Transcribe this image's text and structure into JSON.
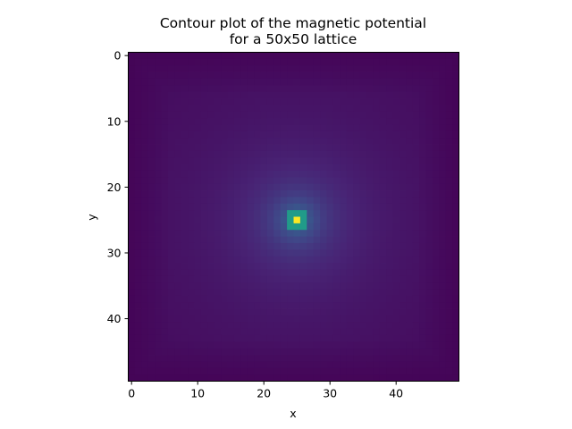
{
  "chart_data": {
    "type": "heatmap",
    "title_lines": [
      "Contour plot of the magnetic potential",
      "for a 50x50 lattice"
    ],
    "xlabel": "x",
    "ylabel": "y",
    "xticks": [
      0,
      10,
      20,
      30,
      40
    ],
    "yticks": [
      0,
      10,
      20,
      30,
      40
    ],
    "xlim": [
      -0.5,
      49.5
    ],
    "ylim": [
      49.5,
      -0.5
    ],
    "grid": false,
    "colormap": "viridis",
    "lattice_size": [
      50,
      50
    ],
    "source_point": {
      "x": 25,
      "y": 25,
      "value": 1.0
    },
    "background_value": 0.0
  }
}
